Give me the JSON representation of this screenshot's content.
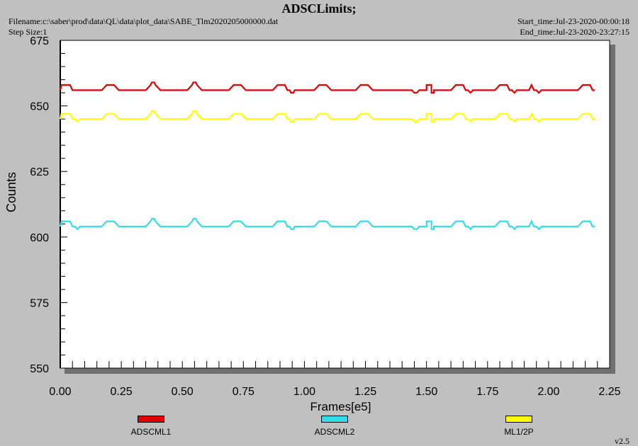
{
  "header": {
    "title": "ADSCLimits;",
    "filename": "Filename:c:\\saber\\prod\\data\\QL\\data\\plot_data\\SABE_Tlm2020205000000.dat",
    "step_size": "Step Size:1",
    "start_time": "Start_time:Jul-23-2020-00:00:18",
    "end_time": "End_time:Jul-23-2020-23:27:15",
    "version": "v2.5"
  },
  "chart_data": {
    "type": "line",
    "title": "ADSCLimits;",
    "xlabel": "Frames[e5]",
    "ylabel": "Counts",
    "xlim": [
      0,
      2.25
    ],
    "ylim": [
      550,
      675
    ],
    "x_ticks": [
      "0.00",
      "0.25",
      "0.50",
      "0.75",
      "1.00",
      "1.25",
      "1.50",
      "1.75",
      "2.00",
      "2.25"
    ],
    "y_ticks": [
      "550",
      "575",
      "600",
      "625",
      "650",
      "675"
    ],
    "legend_position": "bottom",
    "grid": false,
    "series": [
      {
        "name": "ADSCML1",
        "color": "#e00000",
        "points": [
          [
            0,
            656
          ],
          [
            0.005,
            658
          ],
          [
            0.04,
            658
          ],
          [
            0.05,
            656
          ],
          [
            0.17,
            656
          ],
          [
            0.18,
            657
          ],
          [
            0.19,
            658
          ],
          [
            0.22,
            658
          ],
          [
            0.23,
            657
          ],
          [
            0.24,
            656
          ],
          [
            0.35,
            656
          ],
          [
            0.36,
            657
          ],
          [
            0.37,
            658
          ],
          [
            0.375,
            659
          ],
          [
            0.385,
            659
          ],
          [
            0.39,
            658
          ],
          [
            0.4,
            657
          ],
          [
            0.41,
            656
          ],
          [
            0.52,
            656
          ],
          [
            0.53,
            657
          ],
          [
            0.54,
            658
          ],
          [
            0.545,
            659
          ],
          [
            0.555,
            659
          ],
          [
            0.56,
            658
          ],
          [
            0.57,
            657
          ],
          [
            0.58,
            656
          ],
          [
            0.69,
            656
          ],
          [
            0.7,
            657
          ],
          [
            0.71,
            658
          ],
          [
            0.74,
            658
          ],
          [
            0.75,
            657
          ],
          [
            0.76,
            656
          ],
          [
            0.87,
            656
          ],
          [
            0.88,
            657
          ],
          [
            0.89,
            658
          ],
          [
            0.92,
            658
          ],
          [
            0.93,
            656
          ],
          [
            0.94,
            656
          ],
          [
            0.945,
            655
          ],
          [
            0.955,
            655
          ],
          [
            0.96,
            656
          ],
          [
            1.04,
            656
          ],
          [
            1.05,
            657
          ],
          [
            1.06,
            658
          ],
          [
            1.09,
            658
          ],
          [
            1.1,
            657
          ],
          [
            1.11,
            656
          ],
          [
            1.21,
            656
          ],
          [
            1.22,
            657
          ],
          [
            1.23,
            658
          ],
          [
            1.26,
            658
          ],
          [
            1.27,
            657
          ],
          [
            1.28,
            656
          ],
          [
            1.44,
            656
          ],
          [
            1.45,
            655
          ],
          [
            1.46,
            655
          ],
          [
            1.47,
            656
          ],
          [
            1.5,
            656
          ],
          [
            1.5,
            658
          ],
          [
            1.52,
            658
          ],
          [
            1.52,
            655
          ],
          [
            1.53,
            655
          ],
          [
            1.53,
            656
          ],
          [
            1.6,
            656
          ],
          [
            1.61,
            657
          ],
          [
            1.62,
            658
          ],
          [
            1.65,
            658
          ],
          [
            1.66,
            656
          ],
          [
            1.67,
            656
          ],
          [
            1.68,
            655
          ],
          [
            1.69,
            656
          ],
          [
            1.78,
            656
          ],
          [
            1.79,
            657
          ],
          [
            1.8,
            658
          ],
          [
            1.83,
            658
          ],
          [
            1.84,
            656
          ],
          [
            1.85,
            656
          ],
          [
            1.86,
            655
          ],
          [
            1.87,
            656
          ],
          [
            1.92,
            656
          ],
          [
            1.93,
            658
          ],
          [
            1.94,
            656
          ],
          [
            1.95,
            656
          ],
          [
            1.96,
            655
          ],
          [
            1.97,
            656
          ],
          [
            2.12,
            656
          ],
          [
            2.13,
            657
          ],
          [
            2.14,
            658
          ],
          [
            2.17,
            658
          ],
          [
            2.18,
            656
          ],
          [
            2.19,
            656
          ]
        ]
      },
      {
        "name": "ADSCML2",
        "color": "#33dde8",
        "points": [
          [
            0,
            604
          ],
          [
            0.005,
            606
          ],
          [
            0.04,
            606
          ],
          [
            0.05,
            604
          ],
          [
            0.06,
            604
          ],
          [
            0.07,
            603
          ],
          [
            0.08,
            604
          ],
          [
            0.17,
            604
          ],
          [
            0.18,
            605
          ],
          [
            0.19,
            606
          ],
          [
            0.22,
            606
          ],
          [
            0.23,
            605
          ],
          [
            0.24,
            604
          ],
          [
            0.35,
            604
          ],
          [
            0.36,
            605
          ],
          [
            0.37,
            606
          ],
          [
            0.375,
            607
          ],
          [
            0.385,
            607
          ],
          [
            0.39,
            606
          ],
          [
            0.4,
            605
          ],
          [
            0.41,
            604
          ],
          [
            0.52,
            604
          ],
          [
            0.53,
            605
          ],
          [
            0.54,
            606
          ],
          [
            0.545,
            607
          ],
          [
            0.555,
            607
          ],
          [
            0.56,
            606
          ],
          [
            0.57,
            605
          ],
          [
            0.58,
            604
          ],
          [
            0.69,
            604
          ],
          [
            0.7,
            605
          ],
          [
            0.71,
            606
          ],
          [
            0.74,
            606
          ],
          [
            0.75,
            605
          ],
          [
            0.76,
            604
          ],
          [
            0.87,
            604
          ],
          [
            0.88,
            605
          ],
          [
            0.89,
            606
          ],
          [
            0.92,
            606
          ],
          [
            0.93,
            604
          ],
          [
            0.94,
            604
          ],
          [
            0.945,
            603
          ],
          [
            0.955,
            603
          ],
          [
            0.96,
            604
          ],
          [
            1.04,
            604
          ],
          [
            1.05,
            605
          ],
          [
            1.06,
            606
          ],
          [
            1.09,
            606
          ],
          [
            1.1,
            605
          ],
          [
            1.11,
            604
          ],
          [
            1.21,
            604
          ],
          [
            1.22,
            605
          ],
          [
            1.23,
            606
          ],
          [
            1.26,
            606
          ],
          [
            1.27,
            605
          ],
          [
            1.28,
            604
          ],
          [
            1.44,
            604
          ],
          [
            1.45,
            603
          ],
          [
            1.46,
            603
          ],
          [
            1.47,
            604
          ],
          [
            1.5,
            604
          ],
          [
            1.5,
            606
          ],
          [
            1.52,
            606
          ],
          [
            1.52,
            603
          ],
          [
            1.53,
            603
          ],
          [
            1.53,
            604
          ],
          [
            1.6,
            604
          ],
          [
            1.61,
            605
          ],
          [
            1.62,
            606
          ],
          [
            1.65,
            606
          ],
          [
            1.66,
            604
          ],
          [
            1.67,
            604
          ],
          [
            1.68,
            603
          ],
          [
            1.69,
            604
          ],
          [
            1.78,
            604
          ],
          [
            1.79,
            605
          ],
          [
            1.8,
            606
          ],
          [
            1.83,
            606
          ],
          [
            1.84,
            604
          ],
          [
            1.85,
            604
          ],
          [
            1.86,
            603
          ],
          [
            1.87,
            604
          ],
          [
            1.92,
            604
          ],
          [
            1.93,
            606
          ],
          [
            1.94,
            604
          ],
          [
            1.95,
            604
          ],
          [
            1.96,
            603
          ],
          [
            1.97,
            604
          ],
          [
            2.12,
            604
          ],
          [
            2.13,
            605
          ],
          [
            2.14,
            606
          ],
          [
            2.17,
            606
          ],
          [
            2.18,
            604
          ],
          [
            2.19,
            604
          ]
        ]
      },
      {
        "name": "ML1/2P",
        "color": "#ffff00",
        "points": [
          [
            0,
            645
          ],
          [
            0.005,
            647
          ],
          [
            0.04,
            647
          ],
          [
            0.05,
            645
          ],
          [
            0.06,
            645
          ],
          [
            0.07,
            644
          ],
          [
            0.08,
            645
          ],
          [
            0.17,
            645
          ],
          [
            0.18,
            646
          ],
          [
            0.19,
            647
          ],
          [
            0.22,
            647
          ],
          [
            0.23,
            646
          ],
          [
            0.24,
            645
          ],
          [
            0.35,
            645
          ],
          [
            0.36,
            646
          ],
          [
            0.37,
            647
          ],
          [
            0.375,
            648
          ],
          [
            0.385,
            648
          ],
          [
            0.39,
            647
          ],
          [
            0.4,
            646
          ],
          [
            0.41,
            645
          ],
          [
            0.52,
            645
          ],
          [
            0.53,
            646
          ],
          [
            0.54,
            647
          ],
          [
            0.545,
            648
          ],
          [
            0.555,
            648
          ],
          [
            0.56,
            647
          ],
          [
            0.57,
            646
          ],
          [
            0.58,
            645
          ],
          [
            0.69,
            645
          ],
          [
            0.7,
            646
          ],
          [
            0.71,
            647
          ],
          [
            0.74,
            647
          ],
          [
            0.75,
            646
          ],
          [
            0.76,
            645
          ],
          [
            0.87,
            645
          ],
          [
            0.88,
            646
          ],
          [
            0.89,
            647
          ],
          [
            0.92,
            647
          ],
          [
            0.93,
            645
          ],
          [
            0.94,
            645
          ],
          [
            0.945,
            644
          ],
          [
            0.955,
            644
          ],
          [
            0.96,
            645
          ],
          [
            1.04,
            645
          ],
          [
            1.05,
            646
          ],
          [
            1.06,
            647
          ],
          [
            1.09,
            647
          ],
          [
            1.1,
            646
          ],
          [
            1.11,
            645
          ],
          [
            1.21,
            645
          ],
          [
            1.22,
            646
          ],
          [
            1.23,
            647
          ],
          [
            1.26,
            647
          ],
          [
            1.27,
            646
          ],
          [
            1.28,
            645
          ],
          [
            1.44,
            645
          ],
          [
            1.45,
            644
          ],
          [
            1.46,
            644
          ],
          [
            1.47,
            645
          ],
          [
            1.5,
            645
          ],
          [
            1.5,
            647
          ],
          [
            1.52,
            647
          ],
          [
            1.52,
            644
          ],
          [
            1.53,
            644
          ],
          [
            1.53,
            645
          ],
          [
            1.6,
            645
          ],
          [
            1.61,
            646
          ],
          [
            1.62,
            647
          ],
          [
            1.65,
            647
          ],
          [
            1.66,
            645
          ],
          [
            1.67,
            645
          ],
          [
            1.68,
            644
          ],
          [
            1.69,
            645
          ],
          [
            1.78,
            645
          ],
          [
            1.79,
            646
          ],
          [
            1.8,
            647
          ],
          [
            1.83,
            647
          ],
          [
            1.84,
            645
          ],
          [
            1.85,
            645
          ],
          [
            1.86,
            644
          ],
          [
            1.87,
            645
          ],
          [
            1.92,
            645
          ],
          [
            1.93,
            647
          ],
          [
            1.94,
            645
          ],
          [
            1.95,
            645
          ],
          [
            1.96,
            644
          ],
          [
            1.97,
            645
          ],
          [
            2.12,
            645
          ],
          [
            2.13,
            646
          ],
          [
            2.14,
            647
          ],
          [
            2.17,
            647
          ],
          [
            2.18,
            645
          ],
          [
            2.19,
            645
          ]
        ]
      }
    ]
  }
}
